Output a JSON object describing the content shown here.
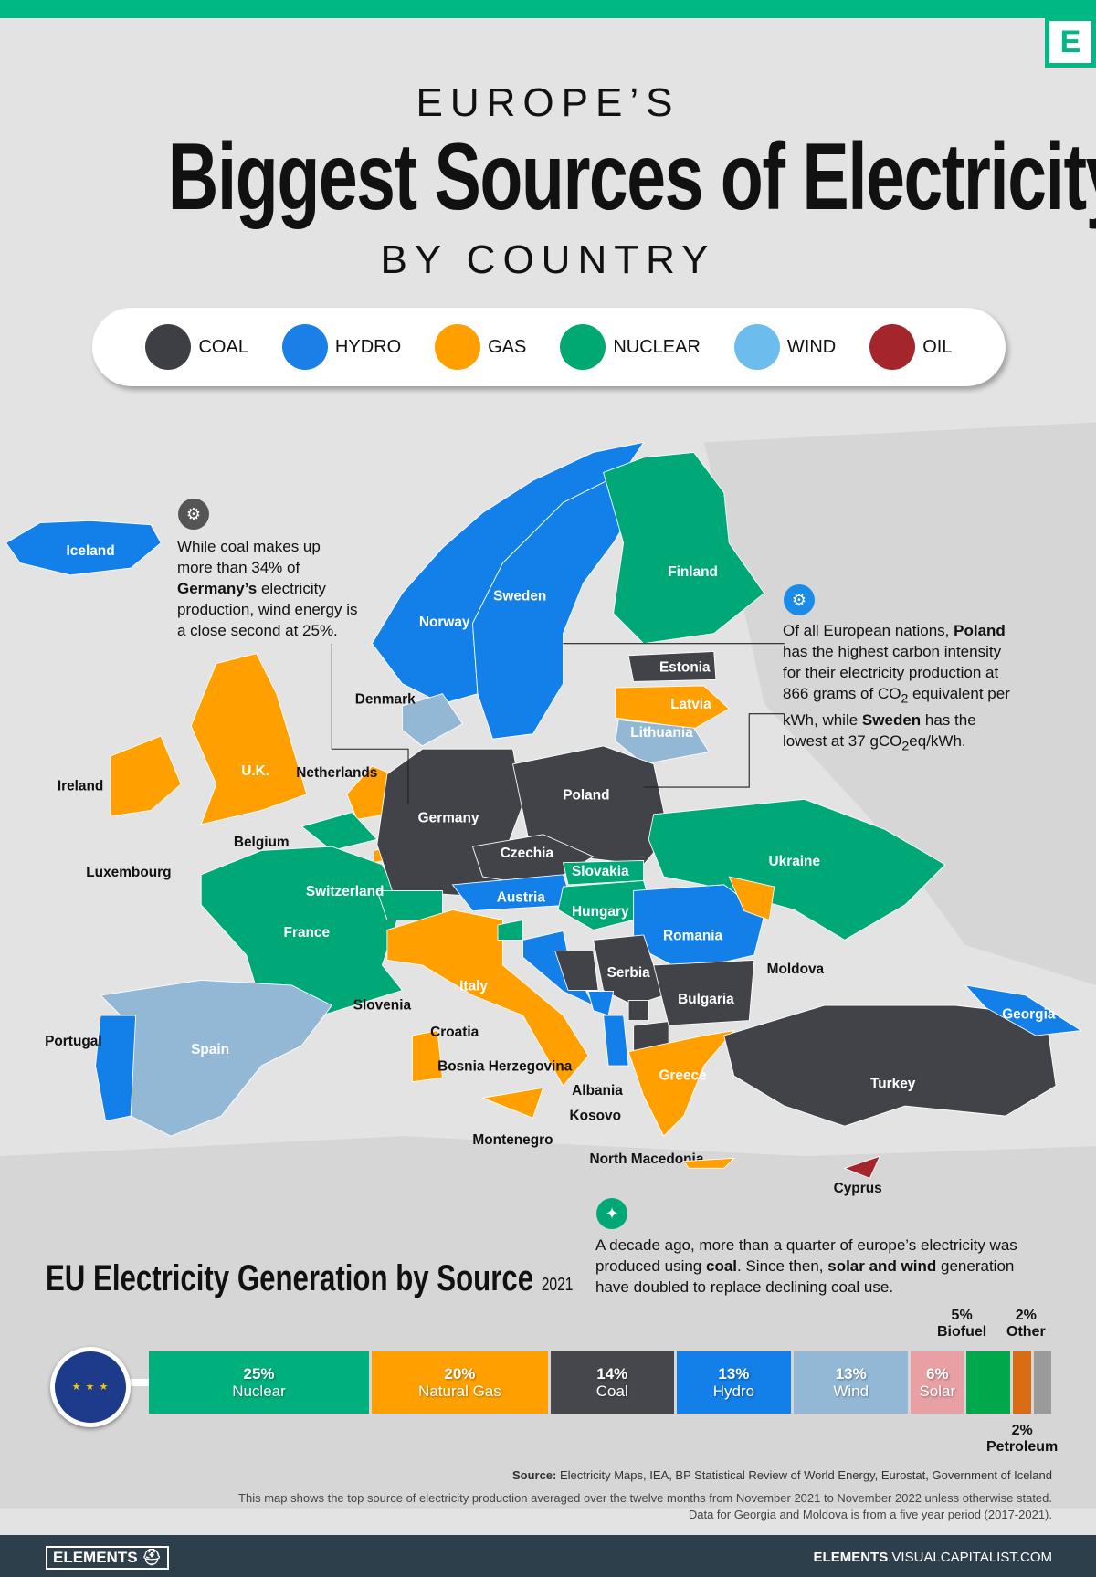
{
  "header": {
    "kicker": "EUROPE’S",
    "title": "Biggest Sources of Electricity",
    "subtitle": "BY COUNTRY",
    "logo_letter": "E"
  },
  "legend": [
    {
      "label": "COAL",
      "color": "#3d3f44"
    },
    {
      "label": "HYDRO",
      "color": "#1a7fe6"
    },
    {
      "label": "GAS",
      "color": "#ffa000"
    },
    {
      "label": "NUCLEAR",
      "color": "#00a872"
    },
    {
      "label": "WIND",
      "color": "#6cbcee"
    },
    {
      "label": "OIL",
      "color": "#a4262c"
    }
  ],
  "source_colors": {
    "coal": "#414349",
    "hydro": "#137fe8",
    "gas": "#ffa000",
    "nuclear": "#00a877",
    "wind": "#93b8d6",
    "oil": "#a4262c"
  },
  "countries": [
    {
      "name": "Iceland",
      "source": "hydro"
    },
    {
      "name": "Norway",
      "source": "hydro"
    },
    {
      "name": "Sweden",
      "source": "hydro"
    },
    {
      "name": "Finland",
      "source": "nuclear"
    },
    {
      "name": "Estonia",
      "source": "coal"
    },
    {
      "name": "Latvia",
      "source": "gas"
    },
    {
      "name": "Lithuania",
      "source": "wind"
    },
    {
      "name": "Denmark",
      "source": "wind"
    },
    {
      "name": "U.K.",
      "source": "gas"
    },
    {
      "name": "Ireland",
      "source": "gas"
    },
    {
      "name": "Netherlands",
      "source": "gas"
    },
    {
      "name": "Belgium",
      "source": "nuclear"
    },
    {
      "name": "Luxembourg",
      "source": "gas"
    },
    {
      "name": "France",
      "source": "nuclear"
    },
    {
      "name": "Germany",
      "source": "coal"
    },
    {
      "name": "Poland",
      "source": "coal"
    },
    {
      "name": "Czechia",
      "source": "coal"
    },
    {
      "name": "Slovakia",
      "source": "nuclear"
    },
    {
      "name": "Ukraine",
      "source": "nuclear"
    },
    {
      "name": "Switzerland",
      "source": "nuclear"
    },
    {
      "name": "Austria",
      "source": "hydro"
    },
    {
      "name": "Hungary",
      "source": "nuclear"
    },
    {
      "name": "Romania",
      "source": "hydro"
    },
    {
      "name": "Moldova",
      "source": "gas"
    },
    {
      "name": "Italy",
      "source": "gas"
    },
    {
      "name": "Slovenia",
      "source": "nuclear"
    },
    {
      "name": "Croatia",
      "source": "hydro"
    },
    {
      "name": "Bosnia Herzegovina",
      "source": "coal"
    },
    {
      "name": "Serbia",
      "source": "coal"
    },
    {
      "name": "Montenegro",
      "source": "hydro"
    },
    {
      "name": "Kosovo",
      "source": "coal"
    },
    {
      "name": "Albania",
      "source": "hydro"
    },
    {
      "name": "North Macedonia",
      "source": "coal"
    },
    {
      "name": "Bulgaria",
      "source": "coal"
    },
    {
      "name": "Greece",
      "source": "gas"
    },
    {
      "name": "Turkey",
      "source": "coal"
    },
    {
      "name": "Cyprus",
      "source": "oil"
    },
    {
      "name": "Georgia",
      "source": "hydro"
    },
    {
      "name": "Spain",
      "source": "wind"
    },
    {
      "name": "Portugal",
      "source": "hydro"
    }
  ],
  "notes": {
    "germany": "While coal makes up more than 34% of <b>Germany’s</b> electricity production, wind energy is a close second at 25%.",
    "poland": "Of all European nations, <b>Poland</b> has the highest carbon intensity for their electricity production at 866 grams of CO<sub>2</sub> equivalent per kWh, while <b>Sweden</b> has the lowest at 37 gCO<sub>2</sub>eq/kWh.",
    "decade": "A decade ago, more than a quarter of europe’s electricity was produced using <b>coal</b>. Since then, <b>solar and wind</b> generation have doubled to replace declining coal use."
  },
  "chart_data": {
    "type": "bar",
    "title": "EU Electricity Generation by Source",
    "year": "2021",
    "categories": [
      "Nuclear",
      "Natural Gas",
      "Coal",
      "Hydro",
      "Wind",
      "Solar",
      "Biofuel",
      "Petroleum",
      "Other"
    ],
    "values": [
      25,
      20,
      14,
      13,
      13,
      6,
      5,
      2,
      2
    ],
    "labels": [
      "25%",
      "20%",
      "14%",
      "13%",
      "13%",
      "6%",
      "5%",
      "2%",
      "2%"
    ],
    "colors": [
      "#00b07c",
      "#ffa000",
      "#45474c",
      "#137fe8",
      "#93b8d6",
      "#e9a0a4",
      "#00a84c",
      "#d96c14",
      "#9a9a9a"
    ]
  },
  "footer": {
    "source_label": "Source:",
    "source_text": "Electricity Maps, IEA, BP Statistical Review of World Energy, Eurostat, Government of Iceland",
    "note1": "This map shows the top source of electricity production averaged over the twelve months from November 2021 to November 2022 unless otherwise stated.",
    "note2": "Data for Georgia and Moldova is from a five year period (2017-2021).",
    "brand": "ELEMENTS",
    "url_bold": "ELEMENTS",
    "url_rest": ".VISUALCAPITALIST.COM"
  }
}
